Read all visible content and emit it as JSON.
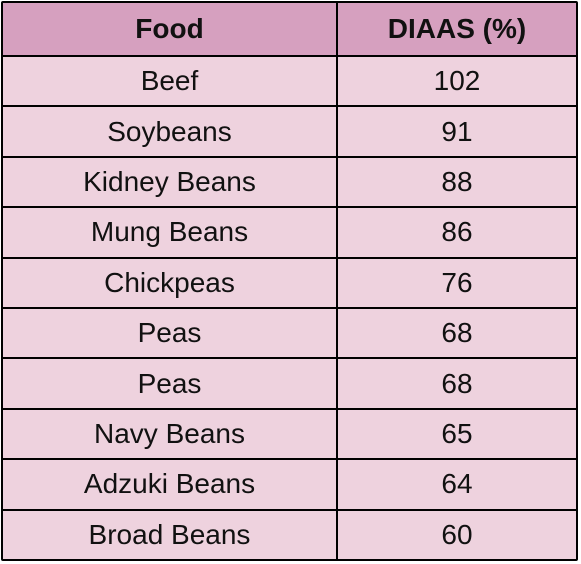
{
  "table": {
    "headers": [
      "Food",
      "DIAAS (%)"
    ],
    "rows": [
      [
        "Beef",
        "102"
      ],
      [
        "Soybeans",
        "91"
      ],
      [
        "Kidney Beans",
        "88"
      ],
      [
        "Mung Beans",
        "86"
      ],
      [
        "Chickpeas",
        "76"
      ],
      [
        "Peas",
        "68"
      ],
      [
        "Peas",
        "68"
      ],
      [
        "Navy Beans",
        "65"
      ],
      [
        "Adzuki Beans",
        "64"
      ],
      [
        "Broad Beans",
        "60"
      ]
    ]
  },
  "colors": {
    "header_bg": "#d6a0bf",
    "cell_bg": "#eed2de",
    "border": "#000000"
  }
}
